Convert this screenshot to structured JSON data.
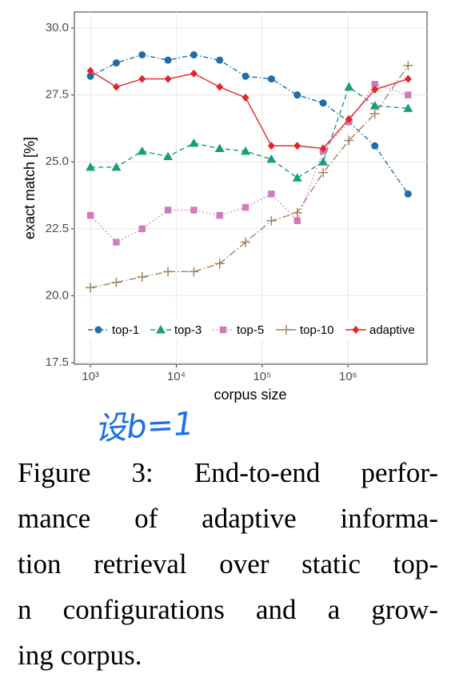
{
  "chart_data": {
    "type": "line",
    "xlabel": "corpus size",
    "ylabel": "exact match [%]",
    "xscale": "log",
    "x": [
      1000,
      2000,
      4000,
      8000,
      16000,
      32000,
      64000,
      128000,
      256000,
      512000,
      1024000,
      2048000,
      5000000
    ],
    "xlim": [
      650,
      8300000
    ],
    "xticks": [
      {
        "value": 1000,
        "label": "10³"
      },
      {
        "value": 10000,
        "label": "10⁴"
      },
      {
        "value": 100000,
        "label": "10⁵"
      },
      {
        "value": 1000000,
        "label": "10⁶"
      }
    ],
    "ylim": [
      17.44,
      30.6
    ],
    "yticks": [
      {
        "value": 17.5,
        "label": "17.5"
      },
      {
        "value": 20,
        "label": "20.0"
      },
      {
        "value": 22.5,
        "label": "22.5"
      },
      {
        "value": 25,
        "label": "25.0"
      },
      {
        "value": 27.5,
        "label": "27.5"
      },
      {
        "value": 30,
        "label": "30.0"
      }
    ],
    "grid": true,
    "legend": "bottom",
    "series": [
      {
        "name": "top-1",
        "color": "#1f6ea8",
        "marker": "circle",
        "dash": "dashdot",
        "values": [
          28.2,
          28.7,
          29.0,
          28.8,
          29.0,
          28.8,
          28.2,
          28.1,
          27.5,
          27.2,
          26.5,
          25.6,
          23.8
        ]
      },
      {
        "name": "top-3",
        "color": "#1a9e77",
        "marker": "triangle",
        "dash": "dashed",
        "values": [
          24.8,
          24.8,
          25.4,
          25.2,
          25.7,
          25.5,
          25.4,
          25.1,
          24.4,
          25.0,
          27.8,
          27.1,
          27.0
        ]
      },
      {
        "name": "top-5",
        "color": "#d07bbd",
        "marker": "square",
        "dash": "dotted",
        "values": [
          23.0,
          22.0,
          22.5,
          23.2,
          23.2,
          23.0,
          23.3,
          23.8,
          22.8,
          25.4,
          26.5,
          27.9,
          27.5
        ]
      },
      {
        "name": "top-10",
        "color": "#a4825c",
        "marker": "plus",
        "dash": "longdashdot",
        "values": [
          20.3,
          20.5,
          20.7,
          20.9,
          20.9,
          21.2,
          22.0,
          22.8,
          23.1,
          24.6,
          25.8,
          26.8,
          28.6
        ]
      },
      {
        "name": "adaptive",
        "color": "#e3262d",
        "marker": "diamond",
        "dash": "solid",
        "values": [
          28.4,
          27.8,
          28.1,
          28.1,
          28.3,
          27.8,
          27.4,
          25.6,
          25.6,
          25.5,
          26.6,
          27.7,
          28.1
        ]
      }
    ]
  },
  "handwritten_note": "设b=1",
  "caption": {
    "lines": [
      "Figure 3: End-to-end perfor-",
      "mance of adaptive informa-",
      "tion retrieval over static top-",
      "n configurations and a grow-",
      "ing corpus."
    ]
  }
}
